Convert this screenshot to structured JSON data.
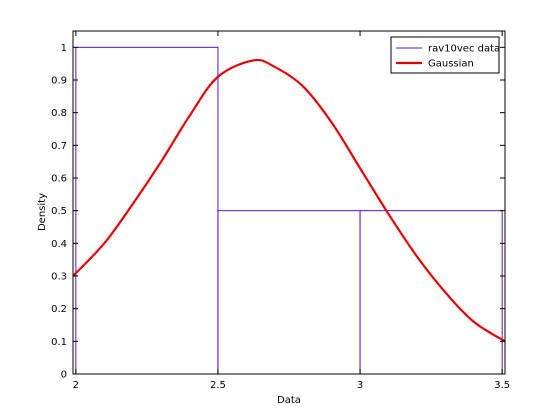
{
  "chart_data": {
    "type": "bar",
    "title": "",
    "xlabel": "Data",
    "ylabel": "Density",
    "xlim": [
      1.99,
      3.51
    ],
    "ylim": [
      0,
      1.05
    ],
    "x_ticks": [
      2,
      2.5,
      3,
      3.5
    ],
    "x_tick_labels": [
      "2",
      "2.5",
      "3",
      "3.5"
    ],
    "y_ticks": [
      0,
      0.1,
      0.2,
      0.3,
      0.4,
      0.5,
      0.6,
      0.7,
      0.8,
      0.9,
      1
    ],
    "y_tick_labels": [
      "0",
      "0.1",
      "0.2",
      "0.3",
      "0.4",
      "0.5",
      "0.6",
      "0.7",
      "0.8",
      "0.9",
      "1"
    ],
    "grid": false,
    "legend_position": "top-right",
    "series": [
      {
        "name": "rav10vec data",
        "kind": "histogram",
        "color": "#5a10c8",
        "bins": [
          {
            "x0": 2.0,
            "x1": 2.5,
            "value": 1.0
          },
          {
            "x0": 2.5,
            "x1": 3.0,
            "value": 0.5
          },
          {
            "x0": 3.0,
            "x1": 3.5,
            "value": 0.5
          }
        ]
      },
      {
        "name": "Gaussian",
        "kind": "line",
        "color": "#e00000",
        "x": [
          1.99,
          2.1,
          2.2,
          2.3,
          2.4,
          2.5,
          2.625,
          2.7,
          2.8,
          2.9,
          3.0,
          3.1,
          3.2,
          3.3,
          3.4,
          3.51
        ],
        "y": [
          0.3,
          0.4,
          0.52,
          0.65,
          0.79,
          0.91,
          0.96,
          0.94,
          0.88,
          0.77,
          0.63,
          0.49,
          0.36,
          0.25,
          0.16,
          0.1
        ]
      }
    ]
  }
}
